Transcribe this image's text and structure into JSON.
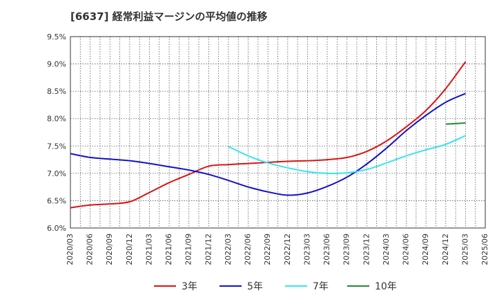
{
  "chart_data": {
    "type": "line",
    "title": "[6637]  経常利益マージンの平均値の推移",
    "xlabel": "",
    "ylabel": "",
    "ylim": [
      6.0,
      9.5
    ],
    "y_ticks": [
      "6.0%",
      "6.5%",
      "7.0%",
      "7.5%",
      "8.0%",
      "8.5%",
      "9.0%",
      "9.5%"
    ],
    "y_tick_values": [
      6.0,
      6.5,
      7.0,
      7.5,
      8.0,
      8.5,
      9.0,
      9.5
    ],
    "x_ticks": [
      "2020/03",
      "2020/06",
      "2020/09",
      "2020/12",
      "2021/03",
      "2021/06",
      "2021/09",
      "2021/12",
      "2022/03",
      "2022/06",
      "2022/09",
      "2022/12",
      "2023/03",
      "2023/06",
      "2023/09",
      "2023/12",
      "2024/03",
      "2024/06",
      "2024/09",
      "2024/12",
      "2025/03",
      "2025/06"
    ],
    "grid": true,
    "legend_position": "bottom",
    "series": [
      {
        "name": "3年",
        "color": "#dd1111",
        "x": [
          "2020/03",
          "2020/06",
          "2020/09",
          "2020/12",
          "2021/03",
          "2021/06",
          "2021/09",
          "2021/12",
          "2022/03",
          "2022/06",
          "2022/09",
          "2022/12",
          "2023/03",
          "2023/06",
          "2023/09",
          "2023/12",
          "2024/03",
          "2024/06",
          "2024/09",
          "2024/12",
          "2025/03"
        ],
        "values": [
          6.37,
          6.42,
          6.44,
          6.48,
          6.65,
          6.83,
          6.98,
          7.13,
          7.16,
          7.18,
          7.2,
          7.22,
          7.23,
          7.25,
          7.29,
          7.4,
          7.59,
          7.85,
          8.15,
          8.55,
          9.04
        ]
      },
      {
        "name": "5年",
        "color": "#1111cc",
        "x": [
          "2020/03",
          "2020/06",
          "2020/09",
          "2020/12",
          "2021/03",
          "2021/06",
          "2021/09",
          "2021/12",
          "2022/03",
          "2022/06",
          "2022/09",
          "2022/12",
          "2023/03",
          "2023/06",
          "2023/09",
          "2023/12",
          "2024/03",
          "2024/06",
          "2024/09",
          "2024/12",
          "2025/03"
        ],
        "values": [
          7.36,
          7.29,
          7.26,
          7.23,
          7.18,
          7.12,
          7.06,
          6.98,
          6.87,
          6.75,
          6.66,
          6.6,
          6.64,
          6.76,
          6.93,
          7.17,
          7.46,
          7.78,
          8.06,
          8.3,
          8.46
        ]
      },
      {
        "name": "7年",
        "color": "#33e5f0",
        "x": [
          "2022/03",
          "2022/06",
          "2022/09",
          "2022/12",
          "2023/03",
          "2023/06",
          "2023/09",
          "2023/12",
          "2024/03",
          "2024/06",
          "2024/09",
          "2024/12",
          "2025/03"
        ],
        "values": [
          7.49,
          7.32,
          7.19,
          7.1,
          7.03,
          7.0,
          7.01,
          7.07,
          7.19,
          7.32,
          7.43,
          7.53,
          7.69
        ]
      },
      {
        "name": "10年",
        "color": "#228833",
        "x": [
          "2024/12",
          "2025/03"
        ],
        "values": [
          7.9,
          7.92
        ]
      }
    ]
  }
}
